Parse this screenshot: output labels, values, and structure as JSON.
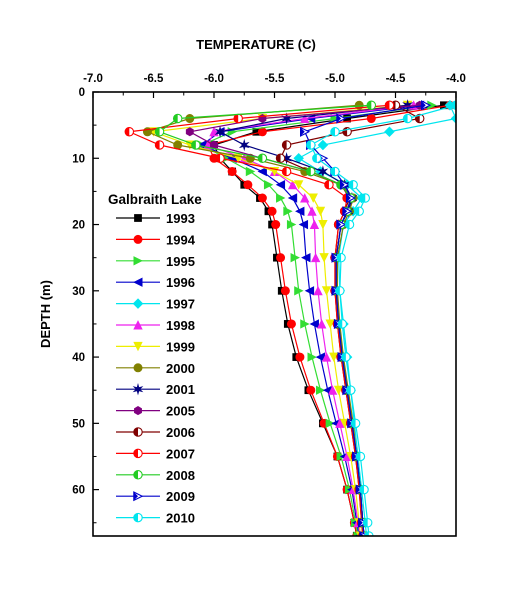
{
  "chart_data": {
    "type": "line",
    "x_title": "TEMPERATURE (C)",
    "y_title": "DEPTH (m)",
    "xlim": [
      -7.0,
      -4.0
    ],
    "ylim": [
      0,
      67
    ],
    "x_ticks": [
      -7.0,
      -6.5,
      -6.0,
      -5.5,
      -5.0,
      -4.5,
      -4.0
    ],
    "x_tick_labels": [
      "-7.0",
      "-6.5",
      "-6.0",
      "-5.5",
      "-5.0",
      "-4.5",
      "-4.0"
    ],
    "y_ticks": [
      0,
      10,
      20,
      30,
      40,
      50,
      60
    ],
    "y_tick_labels": [
      "0",
      "10",
      "20",
      "30",
      "40",
      "50",
      "60"
    ],
    "y_inverted": true,
    "legend_title": "Galbraith Lake",
    "series": [
      {
        "name": "1993",
        "color": "#000000",
        "marker": "square",
        "depth": [
          2,
          4,
          6,
          8,
          10,
          12,
          14,
          16,
          18,
          20,
          25,
          30,
          35,
          40,
          45,
          50,
          55,
          60,
          65,
          67
        ],
        "temperature": [
          -4.1,
          -4.9,
          -5.65,
          -6.0,
          -5.95,
          -5.85,
          -5.75,
          -5.62,
          -5.55,
          -5.52,
          -5.48,
          -5.44,
          -5.39,
          -5.32,
          -5.22,
          -5.1,
          -4.98,
          -4.9,
          -4.84,
          -4.82
        ]
      },
      {
        "name": "1994",
        "color": "#ff0000",
        "marker": "circle",
        "depth": [
          2,
          4,
          6,
          8,
          10,
          12,
          14,
          16,
          18,
          20,
          25,
          30,
          35,
          40,
          45,
          50,
          55,
          60,
          65,
          67
        ],
        "temperature": [
          -4.05,
          -4.7,
          -5.6,
          -6.05,
          -6.0,
          -5.85,
          -5.72,
          -5.6,
          -5.52,
          -5.49,
          -5.45,
          -5.41,
          -5.36,
          -5.29,
          -5.2,
          -5.09,
          -4.98,
          -4.9,
          -4.84,
          -4.82
        ]
      },
      {
        "name": "1995",
        "color": "#33dd33",
        "marker": "triangle-right",
        "depth": [
          2,
          4,
          6,
          8,
          10,
          12,
          14,
          16,
          18,
          20,
          25,
          30,
          35,
          40,
          45,
          50,
          55,
          60,
          65,
          67
        ],
        "temperature": [
          -4.2,
          -5.0,
          -5.85,
          -6.1,
          -5.9,
          -5.7,
          -5.55,
          -5.45,
          -5.39,
          -5.36,
          -5.33,
          -5.3,
          -5.25,
          -5.19,
          -5.12,
          -5.04,
          -4.95,
          -4.88,
          -4.83,
          -4.81
        ]
      },
      {
        "name": "1996",
        "color": "#0000cc",
        "marker": "triangle-left",
        "depth": [
          2,
          4,
          6,
          8,
          10,
          12,
          14,
          16,
          18,
          20,
          25,
          30,
          35,
          40,
          45,
          50,
          55,
          60,
          65,
          67
        ],
        "temperature": [
          -4.3,
          -5.2,
          -5.95,
          -6.1,
          -5.85,
          -5.6,
          -5.45,
          -5.35,
          -5.29,
          -5.26,
          -5.24,
          -5.21,
          -5.17,
          -5.12,
          -5.06,
          -4.99,
          -4.92,
          -4.86,
          -4.82,
          -4.8
        ]
      },
      {
        "name": "1997",
        "color": "#00e5ee",
        "marker": "diamond",
        "depth": [
          2,
          4,
          6,
          8,
          10,
          12,
          14,
          16,
          18,
          20,
          25,
          30,
          35,
          40,
          45,
          50,
          55,
          60,
          65,
          67
        ],
        "temperature": [
          -4.05,
          -4.0,
          -4.55,
          -5.1,
          -5.3,
          -5.12,
          -4.9,
          -4.78,
          -4.85,
          -4.93,
          -4.97,
          -4.96,
          -4.93,
          -4.9,
          -4.87,
          -4.84,
          -4.81,
          -4.78,
          -4.75,
          -4.74
        ]
      },
      {
        "name": "1998",
        "color": "#ee22ee",
        "marker": "triangle-up",
        "depth": [
          2,
          4,
          6,
          8,
          10,
          12,
          14,
          16,
          18,
          20,
          25,
          30,
          35,
          40,
          45,
          50,
          55,
          60,
          65,
          67
        ],
        "temperature": [
          -4.35,
          -5.25,
          -6.0,
          -6.05,
          -5.75,
          -5.5,
          -5.35,
          -5.25,
          -5.19,
          -5.17,
          -5.16,
          -5.14,
          -5.11,
          -5.07,
          -5.02,
          -4.96,
          -4.9,
          -4.85,
          -4.81,
          -4.79
        ]
      },
      {
        "name": "1999",
        "color": "#eeee00",
        "marker": "triangle-down",
        "depth": [
          2,
          4,
          6,
          8,
          10,
          12,
          14,
          16,
          18,
          20,
          25,
          30,
          35,
          40,
          45,
          50,
          55,
          60,
          65,
          67
        ],
        "temperature": [
          -4.4,
          -5.6,
          -6.5,
          -6.2,
          -5.8,
          -5.5,
          -5.3,
          -5.18,
          -5.12,
          -5.1,
          -5.09,
          -5.07,
          -5.04,
          -5.01,
          -4.97,
          -4.92,
          -4.87,
          -4.83,
          -4.8,
          -4.79
        ]
      },
      {
        "name": "2000",
        "color": "#808000",
        "marker": "circle",
        "depth": [
          2,
          4,
          6,
          8,
          10,
          12,
          14,
          16,
          18,
          20,
          25,
          30,
          35,
          40,
          45,
          50,
          55,
          60,
          65,
          67
        ],
        "temperature": [
          -4.8,
          -6.2,
          -6.55,
          -6.3,
          -5.7,
          -5.25,
          -4.95,
          -4.85,
          -4.88,
          -4.93,
          -4.98,
          -4.98,
          -4.96,
          -4.93,
          -4.89,
          -4.85,
          -4.82,
          -4.79,
          -4.77,
          -4.76
        ]
      },
      {
        "name": "2001",
        "color": "#000080",
        "marker": "star",
        "depth": [
          2,
          4,
          6,
          8,
          10,
          12,
          14,
          16,
          18,
          20,
          25,
          30,
          35,
          40,
          45,
          50,
          55,
          60,
          65,
          67
        ],
        "temperature": [
          -4.4,
          -5.4,
          -5.95,
          -5.75,
          -5.4,
          -5.1,
          -4.92,
          -4.86,
          -4.89,
          -4.95,
          -4.99,
          -4.99,
          -4.97,
          -4.94,
          -4.9,
          -4.86,
          -4.82,
          -4.79,
          -4.77,
          -4.76
        ]
      },
      {
        "name": "2005",
        "color": "#800080",
        "marker": "hexagon",
        "depth": [
          2,
          4,
          6,
          8,
          10,
          12,
          14,
          16,
          18,
          20,
          25,
          30,
          35,
          40,
          45,
          50,
          55,
          60,
          65,
          67
        ],
        "temperature": [
          -4.3,
          -5.6,
          -6.2,
          -6.0,
          -5.6,
          -5.2,
          -4.95,
          -4.87,
          -4.9,
          -4.95,
          -4.99,
          -4.99,
          -4.97,
          -4.94,
          -4.9,
          -4.86,
          -4.82,
          -4.79,
          -4.77,
          -4.76
        ]
      },
      {
        "name": "2006",
        "color": "#800000",
        "marker": "half-circle",
        "depth": [
          2,
          4,
          6,
          8,
          10,
          12,
          14,
          16,
          18,
          20,
          25,
          30,
          35,
          40,
          45,
          50,
          55,
          60,
          65,
          67
        ],
        "temperature": [
          -4.5,
          -4.3,
          -4.9,
          -5.4,
          -5.45,
          -5.2,
          -4.95,
          -4.88,
          -4.92,
          -4.97,
          -5.0,
          -5.0,
          -4.98,
          -4.95,
          -4.91,
          -4.87,
          -4.83,
          -4.8,
          -4.78,
          -4.77
        ]
      },
      {
        "name": "2007",
        "color": "#ff0000",
        "marker": "half-circle",
        "depth": [
          2,
          4,
          6,
          8,
          10,
          12,
          14,
          16,
          18,
          20,
          25,
          30,
          35,
          40,
          45,
          50,
          55,
          60,
          65,
          67
        ],
        "temperature": [
          -4.55,
          -5.8,
          -6.7,
          -6.45,
          -5.95,
          -5.4,
          -5.05,
          -4.9,
          -4.92,
          -4.97,
          -5.0,
          -5.0,
          -4.98,
          -4.95,
          -4.91,
          -4.87,
          -4.83,
          -4.8,
          -4.78,
          -4.77
        ]
      },
      {
        "name": "2008",
        "color": "#22cc22",
        "marker": "half-circle",
        "depth": [
          2,
          4,
          6,
          8,
          10,
          12,
          14,
          16,
          18,
          20,
          25,
          30,
          35,
          40,
          45,
          50,
          55,
          60,
          65,
          67
        ],
        "temperature": [
          -4.7,
          -6.3,
          -6.45,
          -6.15,
          -5.6,
          -5.2,
          -4.95,
          -4.87,
          -4.9,
          -4.95,
          -4.99,
          -4.99,
          -4.97,
          -4.94,
          -4.9,
          -4.86,
          -4.82,
          -4.79,
          -4.77,
          -4.76
        ]
      },
      {
        "name": "2009",
        "color": "#0000cc",
        "marker": "triangle-right-open",
        "depth": [
          2,
          4,
          6,
          8,
          10,
          12,
          14,
          16,
          18,
          20,
          25,
          30,
          35,
          40,
          45,
          50,
          55,
          60,
          65,
          67
        ],
        "temperature": [
          -4.25,
          -4.95,
          -5.25,
          -5.2,
          -5.1,
          -5.0,
          -4.92,
          -4.87,
          -4.9,
          -4.95,
          -4.99,
          -4.99,
          -4.97,
          -4.94,
          -4.9,
          -4.86,
          -4.82,
          -4.79,
          -4.77,
          -4.76
        ]
      },
      {
        "name": "2010",
        "color": "#00e5ee",
        "marker": "half-circle",
        "depth": [
          2,
          4,
          6,
          8,
          10,
          12,
          14,
          16,
          18,
          20,
          25,
          30,
          35,
          40,
          45,
          50,
          55,
          60,
          65,
          67
        ],
        "temperature": [
          -4.0,
          -4.4,
          -5.0,
          -5.2,
          -5.15,
          -5.0,
          -4.85,
          -4.75,
          -4.8,
          -4.88,
          -4.95,
          -4.96,
          -4.94,
          -4.91,
          -4.87,
          -4.83,
          -4.79,
          -4.76,
          -4.73,
          -4.72
        ]
      }
    ]
  }
}
